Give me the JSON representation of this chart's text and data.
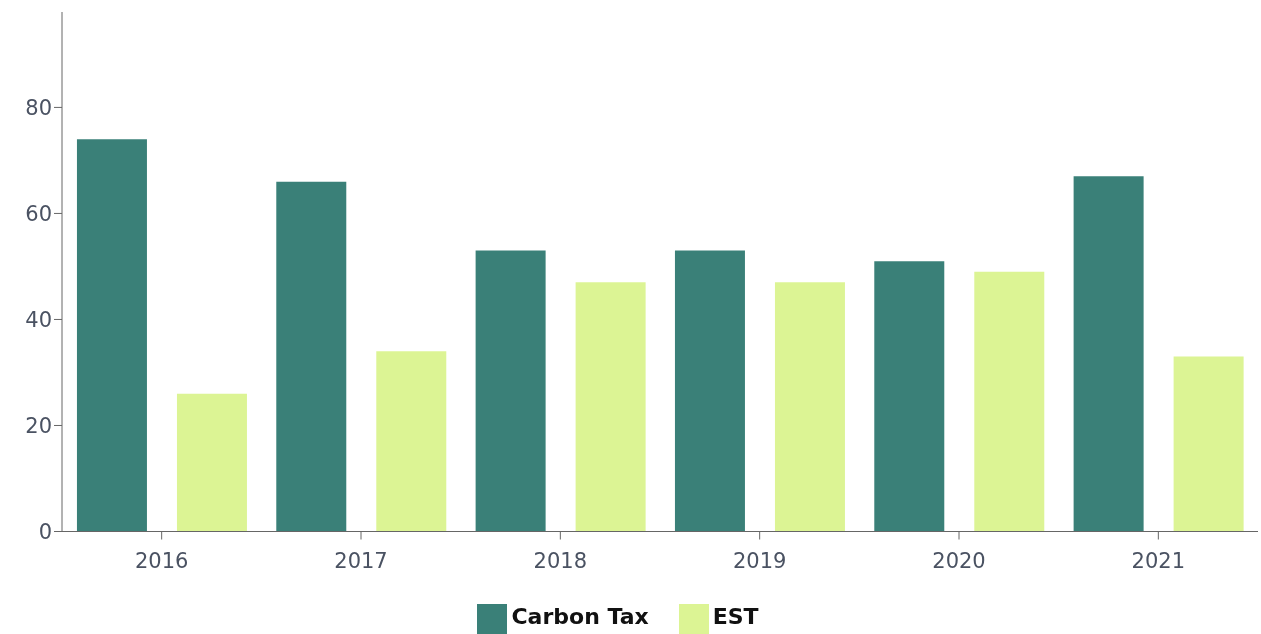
{
  "chart_data": {
    "type": "bar",
    "categories": [
      "2016",
      "2017",
      "2018",
      "2019",
      "2020",
      "2021"
    ],
    "series": [
      {
        "name": "Carbon Tax",
        "color": "#3a8078",
        "values": [
          74,
          66,
          53,
          53,
          51,
          67
        ]
      },
      {
        "name": "EST",
        "color": "#dcf494",
        "values": [
          26,
          34,
          47,
          47,
          49,
          33
        ]
      }
    ],
    "ylim": [
      0,
      98
    ],
    "yticks": [
      0,
      20,
      40,
      60,
      80
    ],
    "grid": false,
    "legend": "bottom"
  }
}
